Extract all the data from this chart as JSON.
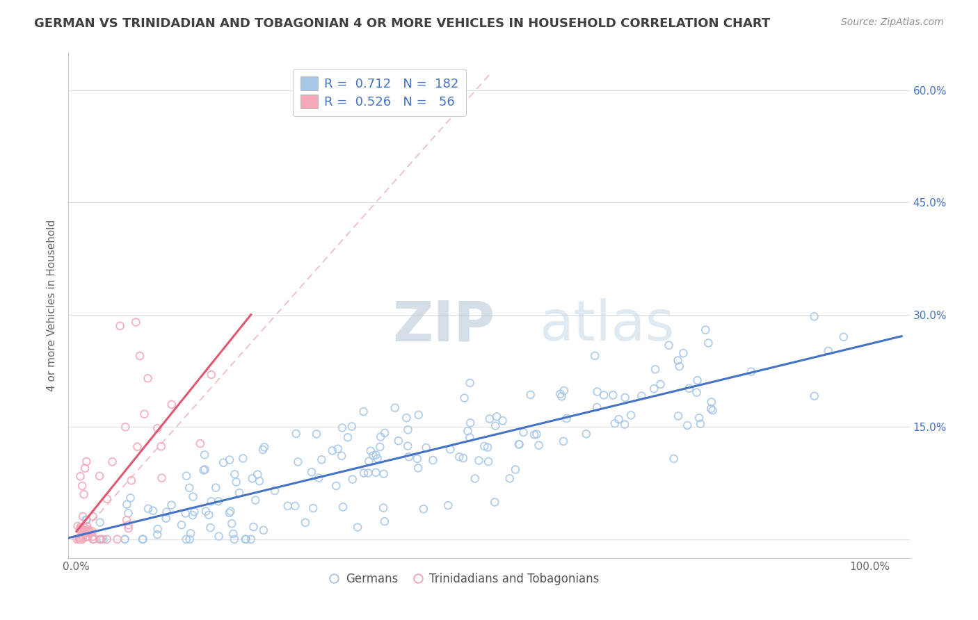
{
  "title": "GERMAN VS TRINIDADIAN AND TOBAGONIAN 4 OR MORE VEHICLES IN HOUSEHOLD CORRELATION CHART",
  "source": "Source: ZipAtlas.com",
  "ylabel": "4 or more Vehicles in Household",
  "ylim": [
    -0.025,
    0.65
  ],
  "xlim": [
    -0.01,
    1.05
  ],
  "german_R": 0.712,
  "german_N": 182,
  "trini_R": 0.526,
  "trini_N": 56,
  "blue_color": "#a8c8e8",
  "pink_color": "#f4a8b8",
  "blue_line_color": "#4472c4",
  "pink_line_color": "#e05870",
  "dash_line_color": "#f0b8c0",
  "watermark_color": "#c8d8e8",
  "background_color": "#ffffff",
  "grid_color": "#e0e0e0",
  "title_color": "#404040",
  "source_color": "#909090",
  "y_tick_vals": [
    0.0,
    0.15,
    0.3,
    0.45,
    0.6
  ],
  "y_tick_labels": [
    "",
    "15.0%",
    "30.0%",
    "45.0%",
    "60.0%"
  ],
  "x_tick_vals": [
    0.0,
    1.0
  ],
  "x_tick_labels": [
    "0.0%",
    "100.0%"
  ],
  "legend_text_color": "#4472c4"
}
